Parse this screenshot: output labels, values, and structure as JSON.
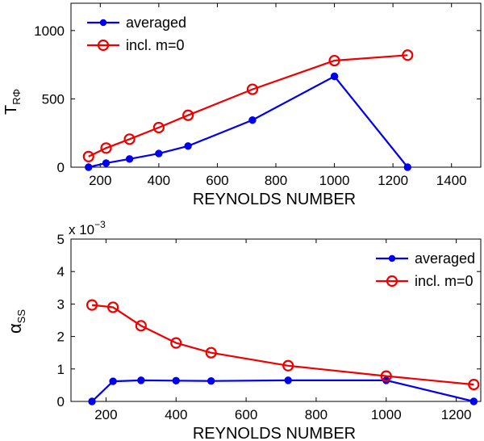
{
  "colors": {
    "averaged": "#0000ee",
    "incl": "#ee0000",
    "axis": "#000000"
  },
  "chart_data": [
    {
      "type": "line",
      "xlabel": "REYNOLDS NUMBER",
      "ylabel_main": "T",
      "ylabel_sub": "RΦ",
      "xlim": [
        100,
        1500
      ],
      "ylim": [
        0,
        1200
      ],
      "xticks": [
        200,
        400,
        600,
        800,
        1000,
        1200,
        1400
      ],
      "yticks": [
        0,
        500,
        1000
      ],
      "legend_position": "top-left",
      "x": [
        160,
        220,
        300,
        400,
        500,
        720,
        1000,
        1250
      ],
      "series": [
        {
          "name": "averaged",
          "marker": "filled-circle",
          "values": [
            0,
            30,
            60,
            100,
            155,
            345,
            665,
            0
          ]
        },
        {
          "name": "incl. m=0",
          "marker": "open-circle",
          "values": [
            78,
            140,
            205,
            290,
            380,
            570,
            780,
            820
          ]
        }
      ]
    },
    {
      "type": "line",
      "xlabel": "REYNOLDS NUMBER",
      "ylabel_main": "α",
      "ylabel_sub": "SS",
      "scale_note_base": "x 10",
      "scale_note_exp": "−3",
      "xlim": [
        100,
        1270
      ],
      "ylim": [
        0,
        5
      ],
      "xticks": [
        200,
        400,
        600,
        800,
        1000,
        1200
      ],
      "yticks": [
        0,
        1,
        2,
        3,
        4,
        5
      ],
      "legend_position": "top-right",
      "x": [
        160,
        220,
        300,
        400,
        500,
        720,
        1000,
        1250
      ],
      "series": [
        {
          "name": "averaged",
          "marker": "filled-circle",
          "values": [
            0,
            0.62,
            0.65,
            0.64,
            0.63,
            0.65,
            0.65,
            0
          ]
        },
        {
          "name": "incl. m=0",
          "marker": "open-circle",
          "values": [
            2.97,
            2.9,
            2.33,
            1.8,
            1.5,
            1.1,
            0.78,
            0.52
          ]
        }
      ]
    }
  ]
}
